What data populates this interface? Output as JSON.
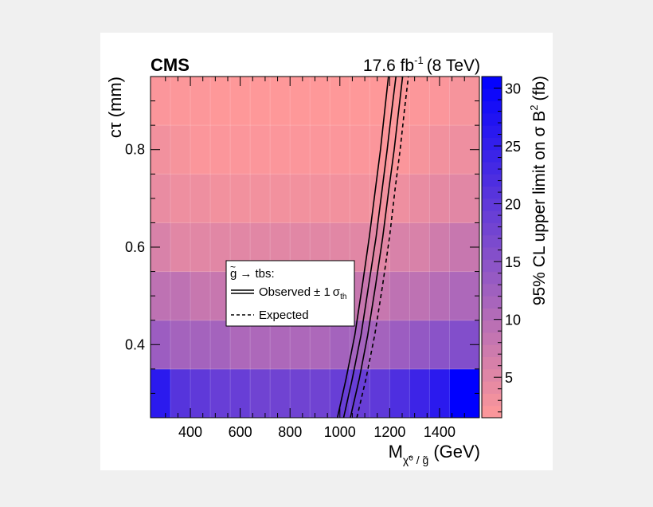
{
  "header": {
    "experiment": "CMS",
    "luminosity_value": "17.6 fb",
    "luminosity_exp": "-1",
    "energy": "(8 TeV)"
  },
  "legend": {
    "title_particle": "g",
    "title_process": "→ tbs:",
    "observed_label": "Observed",
    "pm": "± 1",
    "sigma": "σ",
    "sigma_sub": "th",
    "expected_label": "Expected"
  },
  "colors": {
    "low": "#ff9999",
    "high": "#0000ff",
    "background": "#f0f0f0",
    "plot_bg": "#ffffff"
  },
  "chart_data": {
    "type": "heatmap",
    "xlabel": "M (GeV)",
    "xlabel_main": "M",
    "xlabel_sub": "χ̃⁰ / g̃",
    "xlabel_unit": "(GeV)",
    "ylabel": "cτ (mm)",
    "zlabel": "95% CL upper limit on σ B² (fb)",
    "zlabel_main": "95% CL upper limit on σ B",
    "zlabel_sup": "2",
    "zlabel_unit": "(fb)",
    "xlim": [
      240,
      1560
    ],
    "ylim": [
      0.25,
      0.95
    ],
    "zlim": [
      1.5,
      31
    ],
    "x_ticks": [
      400,
      600,
      800,
      1000,
      1200,
      1400
    ],
    "y_ticks": [
      0.4,
      0.6,
      0.8
    ],
    "z_ticks": [
      5,
      10,
      15,
      20,
      25,
      30
    ],
    "x_bin_edges": [
      240,
      320,
      400,
      480,
      560,
      640,
      720,
      800,
      880,
      960,
      1040,
      1120,
      1200,
      1280,
      1360,
      1440,
      1560
    ],
    "y_bin_edges": [
      0.25,
      0.35,
      0.45,
      0.55,
      0.65,
      0.75,
      0.85,
      0.95
    ],
    "z_values": [
      [
        26,
        21,
        20,
        19,
        19,
        18,
        18,
        18,
        18,
        19,
        19,
        20,
        22,
        24,
        26,
        31
      ],
      [
        13,
        12,
        12,
        12,
        11,
        11,
        11,
        11,
        11,
        12,
        12,
        12,
        13,
        14,
        15,
        16
      ],
      [
        9,
        9,
        8,
        8,
        8,
        8,
        8,
        8,
        8,
        8,
        8,
        8,
        9,
        9,
        10,
        11
      ],
      [
        6,
        5,
        5,
        5,
        5,
        5,
        5,
        5,
        5,
        5,
        5,
        5,
        6,
        6,
        7,
        8
      ],
      [
        4,
        3.5,
        3.5,
        3,
        3,
        3,
        3,
        3,
        3,
        3,
        3,
        3,
        3.5,
        4,
        4.5,
        5
      ],
      [
        3,
        2.5,
        2,
        2,
        2,
        2,
        2,
        2,
        2,
        2,
        2,
        2,
        2,
        2.5,
        3,
        3.5
      ],
      [
        2,
        1.8,
        1.8,
        1.6,
        1.6,
        1.6,
        1.6,
        1.6,
        1.6,
        1.6,
        1.6,
        1.6,
        1.8,
        1.8,
        2,
        2.5
      ]
    ],
    "series": [
      {
        "name": "Observed",
        "style": "solid",
        "x": [
          1015,
          1050,
          1085,
          1115,
          1145,
          1170,
          1190,
          1208,
          1225
        ],
        "y": [
          0.25,
          0.33,
          0.42,
          0.52,
          0.62,
          0.72,
          0.8,
          0.88,
          0.95
        ]
      },
      {
        "name": "Observed -1σ",
        "style": "solid",
        "x": [
          990,
          1025,
          1060,
          1090,
          1118,
          1143,
          1163,
          1180,
          1195
        ],
        "y": [
          0.25,
          0.33,
          0.42,
          0.52,
          0.62,
          0.72,
          0.8,
          0.88,
          0.95
        ]
      },
      {
        "name": "Observed +1σ",
        "style": "solid",
        "x": [
          1042,
          1078,
          1112,
          1143,
          1172,
          1197,
          1218,
          1236,
          1252
        ],
        "y": [
          0.25,
          0.33,
          0.42,
          0.52,
          0.62,
          0.72,
          0.8,
          0.88,
          0.95
        ]
      },
      {
        "name": "Expected",
        "style": "dashed",
        "x": [
          1068,
          1105,
          1140,
          1171,
          1199,
          1222,
          1242,
          1259,
          1275
        ],
        "y": [
          0.25,
          0.33,
          0.42,
          0.52,
          0.62,
          0.72,
          0.8,
          0.88,
          0.95
        ]
      }
    ]
  }
}
